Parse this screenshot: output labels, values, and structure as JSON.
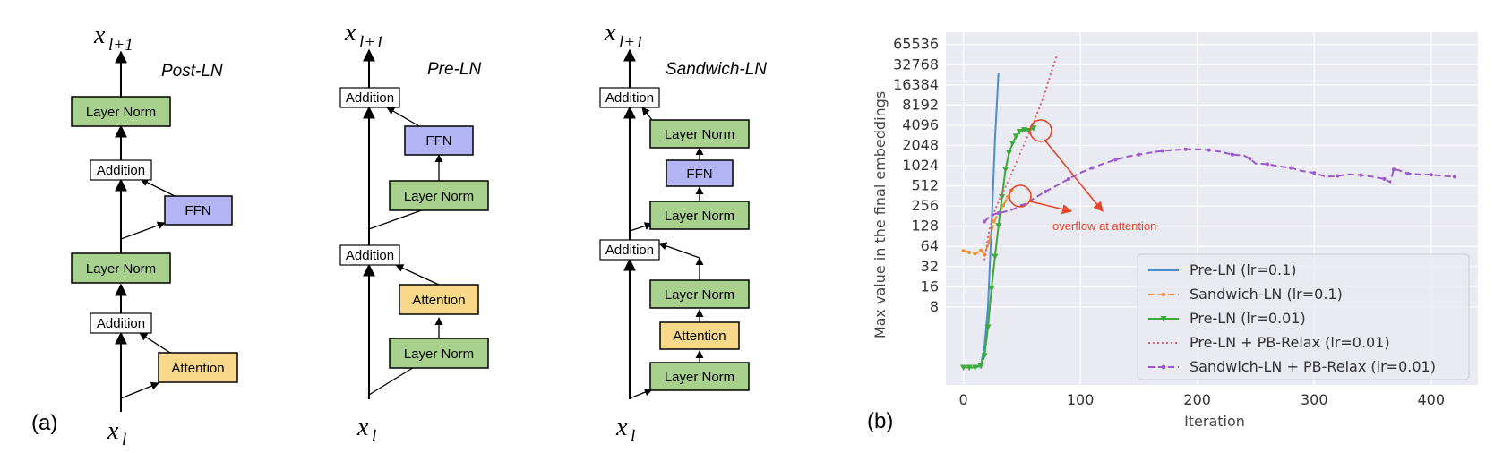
{
  "panel_a": {
    "label": "(a)",
    "input_symbol": "x",
    "input_sub": "l",
    "output_sub": "l+1",
    "post_ln": {
      "title": "Post-LN",
      "layer_norm_top": "Layer Norm",
      "addition_top": "Addition",
      "ffn": "FFN",
      "layer_norm_mid": "Layer Norm",
      "addition_bottom": "Addition",
      "attention": "Attention"
    },
    "pre_ln": {
      "title": "Pre-LN",
      "addition_top": "Addition",
      "ffn": "FFN",
      "layer_norm_top": "Layer Norm",
      "addition_bottom": "Addition",
      "attention": "Attention",
      "layer_norm_bottom": "Layer Norm"
    },
    "sandwich_ln": {
      "title": "Sandwich-LN",
      "addition_top": "Addition",
      "layer_norm_1": "Layer Norm",
      "ffn": "FFN",
      "layer_norm_2": "Layer Norm",
      "addition_bottom": "Addition",
      "layer_norm_3": "Layer Norm",
      "attention": "Attention",
      "layer_norm_4": "Layer Norm"
    },
    "colors": {
      "layer_norm": "#a9d18e",
      "ffn": "#b4b4f5",
      "attention": "#fad88a",
      "addition": "#ffffff"
    }
  },
  "panel_b": {
    "label": "(b)",
    "annotation": "overflow at attention",
    "annotation_color": "#e8452b",
    "chart_data": {
      "type": "line",
      "xlabel": "Iteration",
      "ylabel": "Max value in the final embeddings",
      "yscale": "log2",
      "xlim": [
        -15,
        440
      ],
      "ylim": [
        0.55,
        100000
      ],
      "x_ticks": [
        0,
        100,
        200,
        300,
        400
      ],
      "y_ticks": [
        8,
        16,
        32,
        64,
        128,
        256,
        512,
        1024,
        2048,
        4096,
        8192,
        16384,
        32768,
        65536
      ],
      "grid": true,
      "background": "#eaeaf2",
      "legend_position": "lower-right",
      "series": [
        {
          "name": "Pre-LN (lr=0.1)",
          "color": "#4c8fcc",
          "style": "solid",
          "marker": "none",
          "x": [
            0,
            5,
            10,
            15,
            18,
            21,
            24,
            27,
            30
          ],
          "y": [
            1,
            1,
            1,
            1.1,
            2,
            8,
            120,
            2500,
            25000
          ]
        },
        {
          "name": "Sandwich-LN (lr=0.1)",
          "color": "#f0902a",
          "style": "dashed",
          "marker": "dot",
          "x": [
            0,
            5,
            10,
            15,
            18,
            22,
            26,
            30,
            34,
            38,
            41
          ],
          "y": [
            55,
            52,
            50,
            56,
            48,
            75,
            150,
            200,
            260,
            350,
            440
          ]
        },
        {
          "name": "Pre-LN (lr=0.01)",
          "color": "#3aaa3a",
          "style": "solid",
          "marker": "triangle",
          "x": [
            0,
            5,
            10,
            15,
            18,
            21,
            24,
            27,
            30,
            33,
            36,
            39,
            42,
            45,
            48,
            52,
            56,
            60
          ],
          "y": [
            1,
            1,
            1,
            1.05,
            1.5,
            4,
            15,
            45,
            130,
            350,
            900,
            1600,
            2200,
            2800,
            3300,
            3500,
            3400,
            3700
          ]
        },
        {
          "name": "Pre-LN + PB-Relax (lr=0.01)",
          "color": "#e0607a",
          "style": "dotted",
          "marker": "none",
          "x": [
            18,
            22,
            26,
            30,
            35,
            40,
            45,
            50,
            55,
            60,
            65,
            70,
            75,
            80
          ],
          "y": [
            40,
            110,
            200,
            300,
            450,
            700,
            1100,
            1800,
            2800,
            4500,
            7500,
            13000,
            25000,
            45000
          ]
        },
        {
          "name": "Sandwich-LN + PB-Relax (lr=0.01)",
          "color": "#9b59d0",
          "style": "dashed",
          "marker": "dot",
          "x": [
            18,
            24,
            30,
            40,
            50,
            60,
            70,
            80,
            90,
            100,
            110,
            120,
            130,
            140,
            150,
            160,
            170,
            180,
            190,
            200,
            210,
            220,
            230,
            240,
            245,
            250,
            260,
            270,
            280,
            290,
            300,
            310,
            320,
            330,
            340,
            350,
            360,
            365,
            368,
            372,
            380,
            390,
            400,
            410,
            420
          ],
          "y": [
            150,
            190,
            200,
            220,
            260,
            330,
            420,
            520,
            650,
            800,
            950,
            1100,
            1250,
            1400,
            1500,
            1600,
            1700,
            1750,
            1800,
            1800,
            1750,
            1650,
            1500,
            1450,
            1300,
            1100,
            1080,
            1000,
            950,
            850,
            800,
            700,
            720,
            760,
            740,
            700,
            650,
            580,
            900,
            880,
            780,
            760,
            750,
            720,
            700
          ]
        }
      ]
    }
  }
}
